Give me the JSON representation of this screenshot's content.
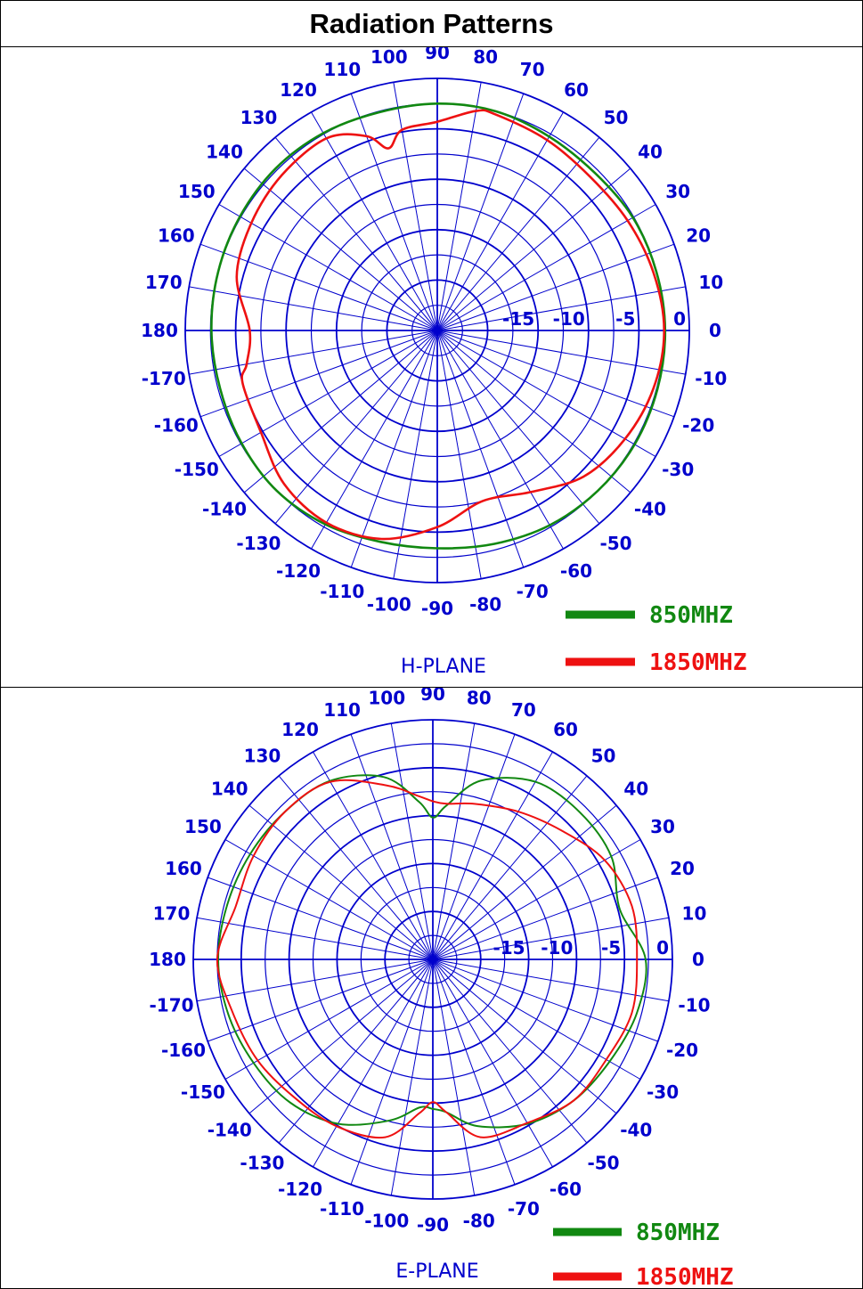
{
  "title": "Radiation Patterns",
  "colors": {
    "grid": "#0000cc",
    "series_850": "#118811",
    "series_1850": "#ee1111"
  },
  "chart_data": [
    {
      "type": "polar",
      "plane_label": "H-PLANE",
      "angle_ticks_deg": [
        0,
        10,
        20,
        30,
        40,
        50,
        60,
        70,
        80,
        90,
        100,
        110,
        120,
        130,
        140,
        150,
        160,
        170,
        180,
        -170,
        -160,
        -150,
        -140,
        -130,
        -120,
        -110,
        -100,
        -90,
        -80,
        -70,
        -60,
        -50,
        -40,
        -30,
        -20,
        -10
      ],
      "radial_tick_labels": [
        "-15",
        "-10",
        "-5",
        "0"
      ],
      "radial_ticks_db": [
        -15,
        -10,
        -5,
        0
      ],
      "radial_range_db": [
        -25,
        0
      ],
      "legend": [
        "850MHZ",
        "1850MHZ"
      ],
      "series": [
        {
          "name": "850MHZ",
          "angles_deg": [
            0,
            15,
            30,
            45,
            60,
            75,
            90,
            105,
            120,
            135,
            150,
            165,
            180,
            195,
            210,
            225,
            240,
            255,
            270,
            285,
            300,
            315,
            330,
            345
          ],
          "gain_db": [
            -2.4,
            -2.5,
            -2.6,
            -2.9,
            -2.8,
            -2.5,
            -2.5,
            -2.6,
            -2.4,
            -2.3,
            -2.4,
            -2.5,
            -2.6,
            -2.7,
            -2.6,
            -2.5,
            -2.8,
            -3.3,
            -3.4,
            -3.1,
            -2.7,
            -2.5,
            -2.4,
            -2.4
          ]
        },
        {
          "name": "1850MHZ",
          "angles_deg": [
            0,
            15,
            30,
            45,
            60,
            75,
            80,
            90,
            100,
            105,
            110,
            120,
            135,
            150,
            165,
            180,
            190,
            195,
            210,
            225,
            240,
            255,
            270,
            285,
            300,
            315,
            330,
            345
          ],
          "gain_db": [
            -2.5,
            -2.8,
            -3.2,
            -3.5,
            -3.2,
            -2.8,
            -2.9,
            -4.3,
            -4.8,
            -6.3,
            -4.5,
            -3.0,
            -3.2,
            -3.7,
            -4.4,
            -6.4,
            -5.8,
            -5.0,
            -4.8,
            -3.5,
            -3.0,
            -3.6,
            -5.5,
            -7.5,
            -6.5,
            -4.5,
            -3.5,
            -2.8
          ]
        }
      ]
    },
    {
      "type": "polar",
      "plane_label": "E-PLANE",
      "angle_ticks_deg": [
        0,
        10,
        20,
        30,
        40,
        50,
        60,
        70,
        80,
        90,
        100,
        110,
        120,
        130,
        140,
        150,
        160,
        170,
        180,
        -170,
        -160,
        -150,
        -140,
        -130,
        -120,
        -110,
        -100,
        -90,
        -80,
        -70,
        -60,
        -50,
        -40,
        -30,
        -20,
        -10
      ],
      "radial_tick_labels": [
        "-15",
        "-10",
        "-5",
        "0"
      ],
      "radial_ticks_db": [
        -15,
        -10,
        -5,
        0
      ],
      "radial_range_db": [
        -25,
        0
      ],
      "legend": [
        "850MHZ",
        "1850MHZ"
      ],
      "series": [
        {
          "name": "850MHZ",
          "angles_deg": [
            0,
            15,
            30,
            45,
            60,
            75,
            85,
            90,
            95,
            105,
            120,
            135,
            150,
            165,
            180,
            195,
            210,
            225,
            240,
            255,
            265,
            270,
            275,
            285,
            300,
            315,
            330,
            345
          ],
          "gain_db": [
            -2.8,
            -4.8,
            -3.5,
            -3.3,
            -3.6,
            -5.7,
            -8.9,
            -10.2,
            -8.5,
            -5.3,
            -3.5,
            -3.2,
            -3.0,
            -2.8,
            -2.6,
            -2.9,
            -3.4,
            -3.9,
            -5.2,
            -7.6,
            -9.5,
            -9.4,
            -9.0,
            -7.0,
            -5.2,
            -4.2,
            -3.7,
            -3.0
          ]
        },
        {
          "name": "1850MHZ",
          "angles_deg": [
            0,
            15,
            30,
            45,
            60,
            75,
            85,
            90,
            95,
            105,
            120,
            135,
            150,
            165,
            180,
            195,
            210,
            225,
            240,
            255,
            265,
            270,
            275,
            285,
            300,
            315,
            330,
            345
          ],
          "gain_db": [
            -3.7,
            -3.5,
            -4.3,
            -6.0,
            -7.2,
            -8.2,
            -8.7,
            -8.5,
            -7.9,
            -6.2,
            -3.6,
            -3.2,
            -3.4,
            -3.7,
            -2.5,
            -3.4,
            -3.9,
            -4.6,
            -4.9,
            -5.8,
            -8.9,
            -10.1,
            -9.0,
            -5.8,
            -5.3,
            -4.2,
            -4.1,
            -3.5
          ]
        }
      ]
    }
  ]
}
